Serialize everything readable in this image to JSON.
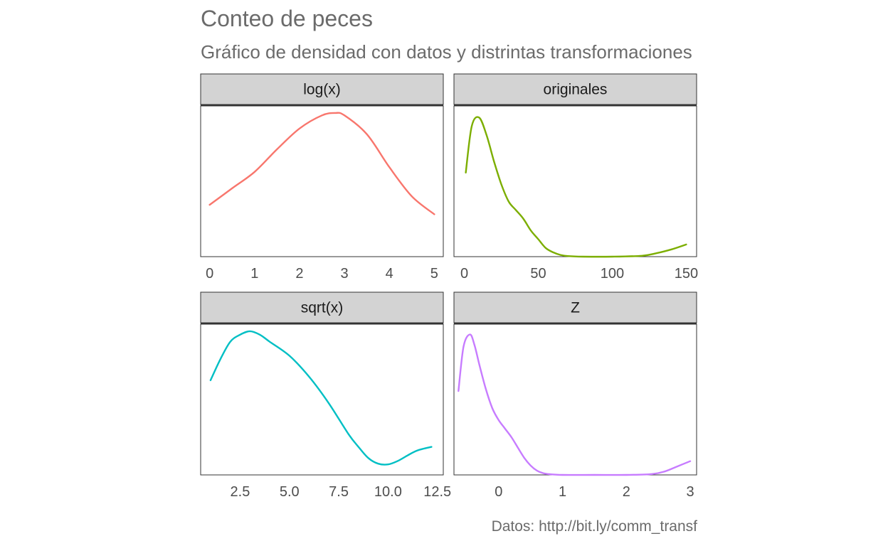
{
  "title": "Conteo de peces",
  "subtitle": "Gráfico de densidad con datos y distrintas transformaciones",
  "caption": "Datos: http://bit.ly/comm_transf",
  "chart_data": [
    {
      "type": "line",
      "panel": "log(x)",
      "color": "#F8766D",
      "xlim": [
        -0.2,
        5.2
      ],
      "ylim": [
        0,
        0.32
      ],
      "xticks": [
        0,
        1,
        2,
        3,
        4,
        5
      ],
      "x": [
        0,
        0.5,
        1,
        1.5,
        2,
        2.5,
        2.8,
        3.0,
        3.5,
        4,
        4.5,
        5
      ],
      "y": [
        0.11,
        0.145,
        0.18,
        0.228,
        0.272,
        0.3,
        0.305,
        0.3,
        0.26,
        0.19,
        0.128,
        0.09
      ]
    },
    {
      "type": "line",
      "panel": "originales",
      "color": "#7CAE00",
      "xlim": [
        -7,
        157
      ],
      "ylim": [
        0,
        0.052
      ],
      "xticks": [
        0,
        50,
        100,
        150
      ],
      "x": [
        1,
        5,
        10,
        15,
        20,
        25,
        30,
        35,
        40,
        45,
        50,
        55,
        60,
        65,
        70,
        80,
        100,
        120,
        130,
        140,
        150
      ],
      "y": [
        0.029,
        0.045,
        0.048,
        0.042,
        0.033,
        0.025,
        0.019,
        0.016,
        0.013,
        0.009,
        0.006,
        0.003,
        0.0015,
        0.0006,
        0.0002,
        0,
        0,
        0.0003,
        0.0012,
        0.0025,
        0.0042
      ]
    },
    {
      "type": "line",
      "panel": "sqrt(x)",
      "color": "#00BFC4",
      "xlim": [
        0.5,
        12.8
      ],
      "ylim": [
        0,
        0.215
      ],
      "xticks": [
        2.5,
        5.0,
        7.5,
        10.0,
        12.5
      ],
      "x": [
        1,
        1.5,
        2,
        2.5,
        3,
        3.5,
        4,
        5,
        6,
        7,
        8,
        8.5,
        9,
        9.5,
        10,
        10.5,
        11,
        11.5,
        12.2
      ],
      "y": [
        0.135,
        0.165,
        0.19,
        0.2,
        0.205,
        0.2,
        0.19,
        0.17,
        0.14,
        0.102,
        0.058,
        0.04,
        0.024,
        0.016,
        0.015,
        0.02,
        0.028,
        0.035,
        0.04
      ]
    },
    {
      "type": "line",
      "panel": "Z",
      "color": "#C77CFF",
      "xlim": [
        -0.7,
        3.1
      ],
      "ylim": [
        0,
        0.88
      ],
      "xticks": [
        0,
        1,
        2,
        3
      ],
      "x": [
        -0.63,
        -0.55,
        -0.45,
        -0.38,
        -0.3,
        -0.2,
        -0.1,
        0,
        0.1,
        0.2,
        0.3,
        0.4,
        0.5,
        0.6,
        0.7,
        0.8,
        1,
        1.5,
        2,
        2.4,
        2.6,
        2.8,
        3.0
      ],
      "y": [
        0.49,
        0.75,
        0.82,
        0.76,
        0.64,
        0.5,
        0.39,
        0.32,
        0.27,
        0.22,
        0.16,
        0.1,
        0.055,
        0.025,
        0.01,
        0.004,
        0,
        0,
        0,
        0.005,
        0.02,
        0.05,
        0.08
      ]
    }
  ]
}
